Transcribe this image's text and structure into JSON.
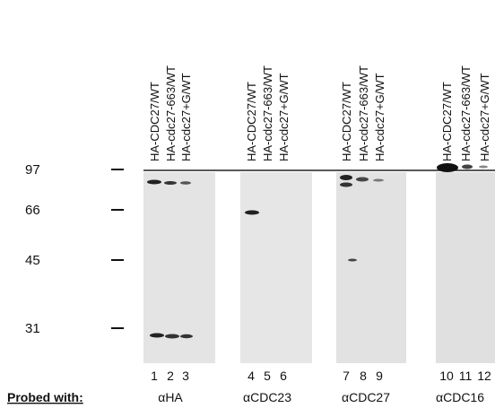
{
  "markers": [
    "97",
    "66",
    "45",
    "31"
  ],
  "probed_with": "Probed with:",
  "panels": [
    {
      "probe": "αHA",
      "lanes": [
        {
          "label": "HA-CDC27/WT",
          "number": 1
        },
        {
          "label": "HA-cdc27-663/WT",
          "number": 2
        },
        {
          "label": "HA-cdc27+G/WT",
          "number": 3
        }
      ]
    },
    {
      "probe": "αCDC23",
      "lanes": [
        {
          "label": "HA-CDC27/WT",
          "number": 4
        },
        {
          "label": "HA-cdc27-663/WT",
          "number": 5
        },
        {
          "label": "HA-cdc27+G/WT",
          "number": 6
        }
      ]
    },
    {
      "probe": "αCDC27",
      "lanes": [
        {
          "label": "HA-CDC27/WT",
          "number": 7
        },
        {
          "label": "HA-cdc27-663/WT",
          "number": 8
        },
        {
          "label": "HA-cdc27+G/WT",
          "number": 9
        }
      ]
    },
    {
      "probe": "αCDC16",
      "lanes": [
        {
          "label": "HA-CDC27/WT",
          "number": 10
        },
        {
          "label": "HA-cdc27-663/WT",
          "number": 11
        },
        {
          "label": "HA-cdc27+G/WT",
          "number": 12
        }
      ]
    }
  ]
}
